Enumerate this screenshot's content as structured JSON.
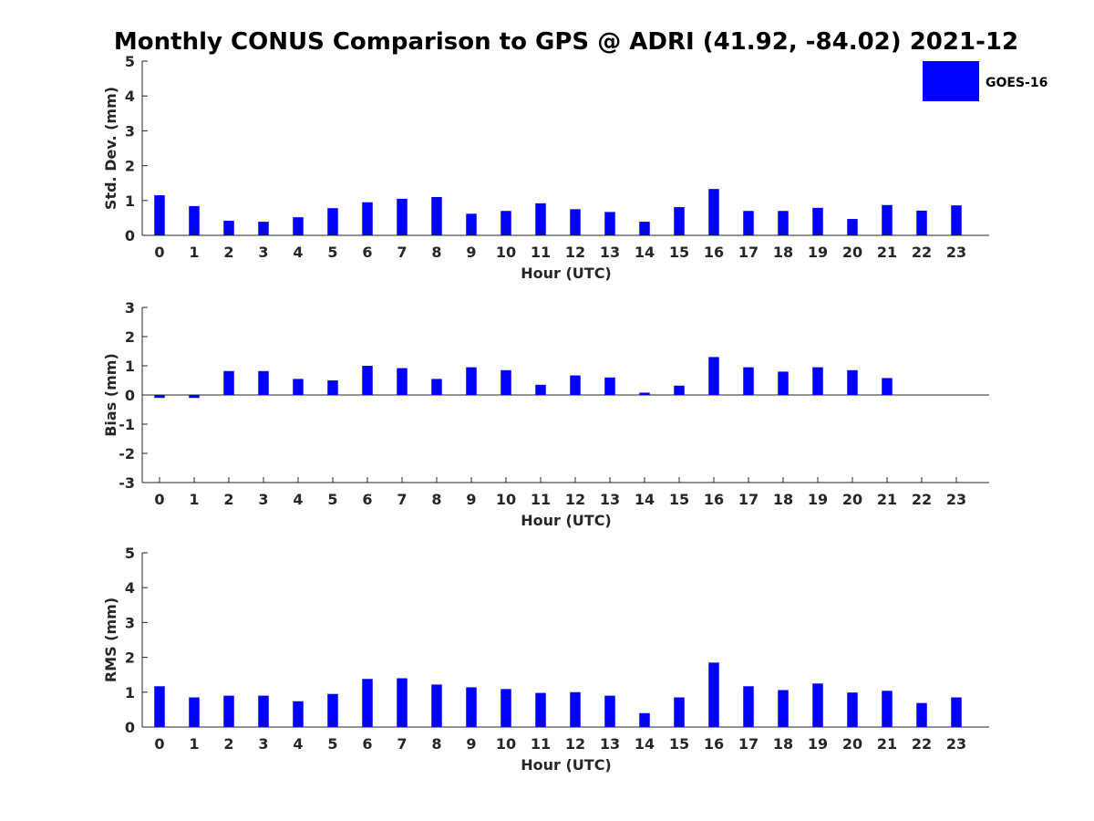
{
  "figure": {
    "title": "Monthly CONUS Comparison to GPS @ ADRI (41.92, -84.02) 2021-12"
  },
  "legend": {
    "label": "GOES-16",
    "color": "#0000FF"
  },
  "chart_data": [
    {
      "type": "bar",
      "id": "stddev",
      "title": "",
      "xlabel": "Hour (UTC)",
      "ylabel": "Std. Dev. (mm)",
      "ylim": [
        0,
        5
      ],
      "yticks": [
        0,
        1,
        2,
        3,
        4,
        5
      ],
      "categories": [
        "0",
        "1",
        "2",
        "3",
        "4",
        "5",
        "6",
        "7",
        "8",
        "9",
        "10",
        "11",
        "12",
        "13",
        "14",
        "15",
        "16",
        "17",
        "18",
        "19",
        "20",
        "21",
        "22",
        "23"
      ],
      "series": [
        {
          "name": "GOES-16",
          "color": "#0000FF",
          "values": [
            1.15,
            0.84,
            0.42,
            0.39,
            0.52,
            0.78,
            0.95,
            1.05,
            1.1,
            0.62,
            0.7,
            0.92,
            0.75,
            0.67,
            0.39,
            0.81,
            1.33,
            0.7,
            0.7,
            0.79,
            0.47,
            0.87,
            0.71,
            0.86
          ]
        }
      ],
      "legend": "top-right"
    },
    {
      "type": "bar",
      "id": "bias",
      "title": "",
      "xlabel": "Hour (UTC)",
      "ylabel": "Bias (mm)",
      "ylim": [
        -3,
        3
      ],
      "yticks": [
        -3,
        -2,
        -1,
        0,
        1,
        2,
        3
      ],
      "categories": [
        "0",
        "1",
        "2",
        "3",
        "4",
        "5",
        "6",
        "7",
        "8",
        "9",
        "10",
        "11",
        "12",
        "13",
        "14",
        "15",
        "16",
        "17",
        "18",
        "19",
        "20",
        "21",
        "22",
        "23"
      ],
      "series": [
        {
          "name": "GOES-16",
          "color": "#0000FF",
          "values": [
            -0.1,
            -0.1,
            0.82,
            0.82,
            0.55,
            0.5,
            1.0,
            0.92,
            0.55,
            0.95,
            0.85,
            0.35,
            0.67,
            0.6,
            0.08,
            0.32,
            1.3,
            0.95,
            0.8,
            0.95,
            0.85,
            0.58,
            0.0,
            0.0
          ]
        }
      ]
    },
    {
      "type": "bar",
      "id": "rms",
      "title": "",
      "xlabel": "Hour (UTC)",
      "ylabel": "RMS (mm)",
      "ylim": [
        0,
        5
      ],
      "yticks": [
        0,
        1,
        2,
        3,
        4,
        5
      ],
      "categories": [
        "0",
        "1",
        "2",
        "3",
        "4",
        "5",
        "6",
        "7",
        "8",
        "9",
        "10",
        "11",
        "12",
        "13",
        "14",
        "15",
        "16",
        "17",
        "18",
        "19",
        "20",
        "21",
        "22",
        "23"
      ],
      "series": [
        {
          "name": "GOES-16",
          "color": "#0000FF",
          "values": [
            1.17,
            0.85,
            0.9,
            0.9,
            0.74,
            0.95,
            1.38,
            1.4,
            1.22,
            1.14,
            1.09,
            0.98,
            1.0,
            0.9,
            0.4,
            0.85,
            1.85,
            1.17,
            1.06,
            1.25,
            0.99,
            1.04,
            0.69,
            0.85
          ]
        }
      ]
    }
  ]
}
